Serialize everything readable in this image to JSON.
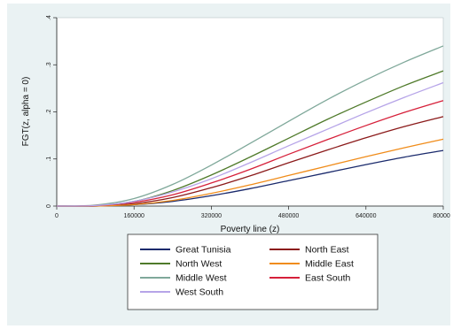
{
  "chart_data": {
    "type": "line",
    "title": "",
    "xlabel": "Poverty line (z)",
    "ylabel": "FGT(z, alpha = 0)",
    "xlim": [
      0,
      800000
    ],
    "ylim": [
      0,
      0.4
    ],
    "x_ticks": [
      "0",
      "160000",
      "320000",
      "480000",
      "640000",
      "800000"
    ],
    "y_ticks": [
      "0",
      ".1",
      ".2",
      ".3",
      ".4"
    ],
    "grid": false,
    "legend_position": "bottom",
    "x": [
      0,
      80000,
      160000,
      240000,
      320000,
      400000,
      480000,
      560000,
      640000,
      720000,
      800000
    ],
    "series": [
      {
        "name": "Great Tunisia",
        "color": "#1a2a6c",
        "values": [
          0,
          0,
          0.003,
          0.01,
          0.022,
          0.037,
          0.054,
          0.071,
          0.088,
          0.104,
          0.118
        ]
      },
      {
        "name": "North East",
        "color": "#8b1a1a",
        "values": [
          0,
          0,
          0.005,
          0.018,
          0.039,
          0.064,
          0.092,
          0.119,
          0.145,
          0.169,
          0.19
        ]
      },
      {
        "name": "North West",
        "color": "#4f7a2a",
        "values": [
          0,
          0.001,
          0.01,
          0.033,
          0.066,
          0.104,
          0.144,
          0.184,
          0.221,
          0.256,
          0.287
        ]
      },
      {
        "name": "Middle East",
        "color": "#f08c1a",
        "values": [
          0,
          0,
          0.003,
          0.012,
          0.027,
          0.045,
          0.065,
          0.085,
          0.105,
          0.124,
          0.142
        ]
      },
      {
        "name": "Middle West",
        "color": "#7fa89a",
        "values": [
          0,
          0.002,
          0.016,
          0.046,
          0.087,
          0.133,
          0.18,
          0.226,
          0.268,
          0.306,
          0.34
        ]
      },
      {
        "name": "East South",
        "color": "#d6203a",
        "values": [
          0,
          0.001,
          0.008,
          0.024,
          0.049,
          0.078,
          0.11,
          0.141,
          0.171,
          0.199,
          0.224
        ]
      },
      {
        "name": "West South",
        "color": "#b6a4e8",
        "values": [
          0,
          0.001,
          0.01,
          0.03,
          0.058,
          0.092,
          0.128,
          0.163,
          0.198,
          0.231,
          0.262
        ]
      }
    ]
  }
}
